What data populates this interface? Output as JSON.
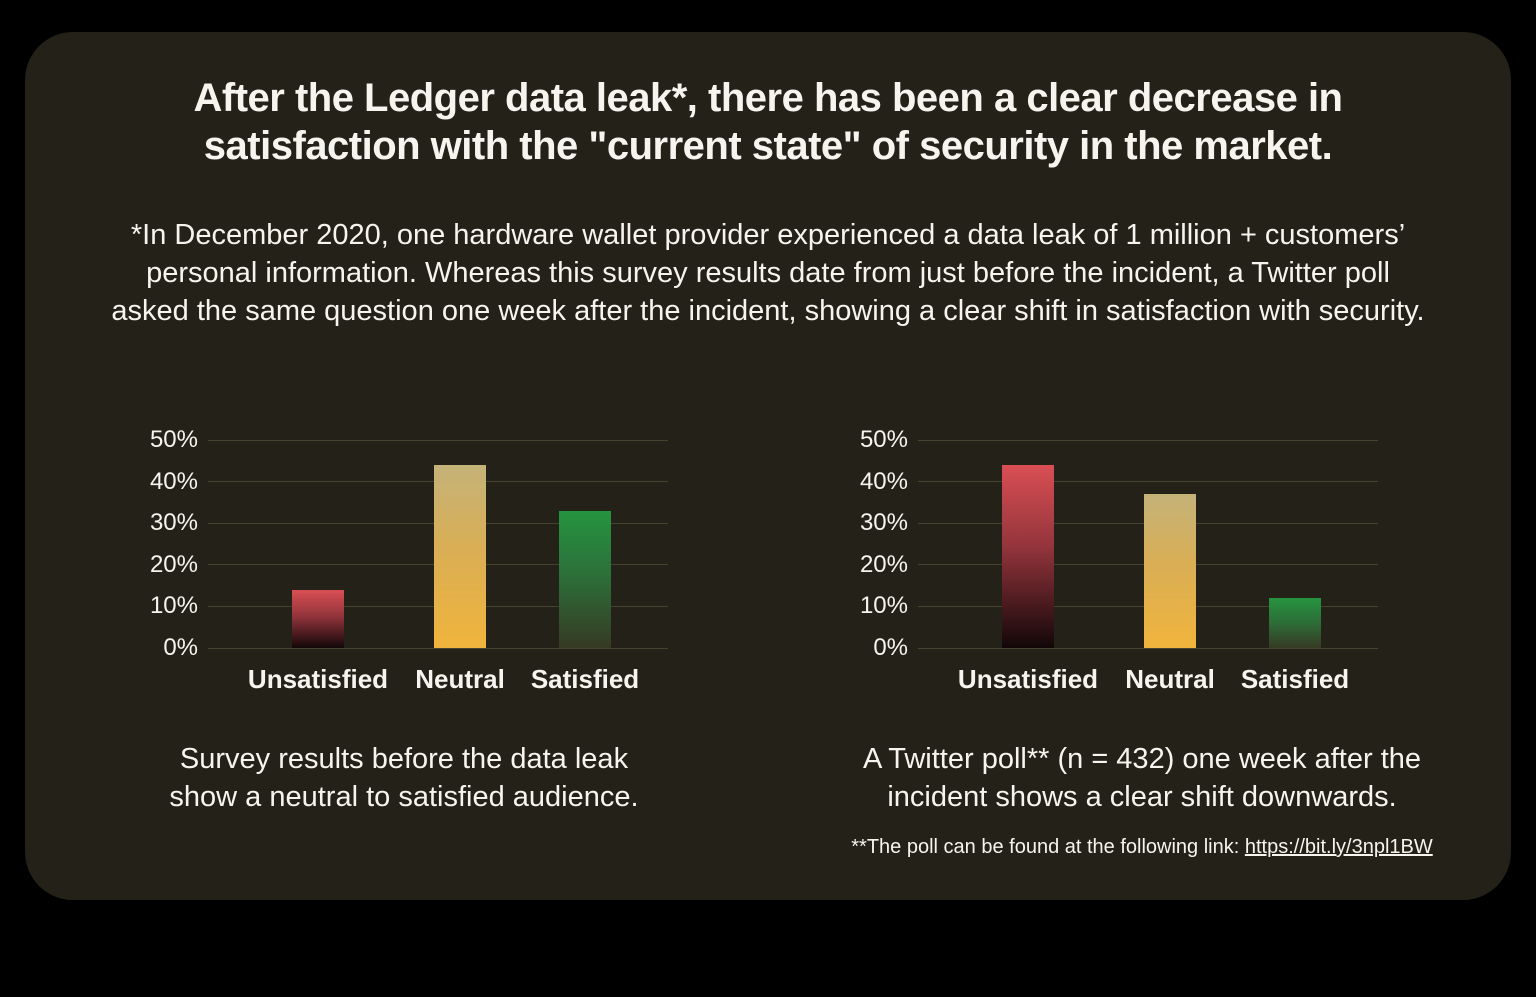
{
  "page": {
    "title_lines": [
      "After the Ledger data leak*, there has been a clear decrease in",
      "satisfaction with the \"current state\" of security in the market."
    ],
    "subtitle_lines": [
      "*In December 2020, one hardware wallet provider experienced a data leak of 1 million + customers’",
      "personal information. Whereas this survey results date from just before the incident, a Twitter poll",
      "asked the same question one week after the incident, showing a clear shift in satisfaction with security."
    ]
  },
  "colors": {
    "page_background": "#000000",
    "card_background": "#232118",
    "text": "#f6f4ee",
    "gridline": "#45422e",
    "gradients": {
      "red": [
        "#d94f54",
        "#93343c",
        "#120708"
      ],
      "yellow": [
        "#c4b379",
        "#d9ae55",
        "#f0b43c"
      ],
      "green": [
        "#25943f",
        "#2c713a",
        "#363a23"
      ]
    }
  },
  "chart_data": [
    {
      "type": "bar",
      "title": "",
      "xlabel": "",
      "ylabel": "",
      "categories": [
        "Unsatisfied",
        "Neutral",
        "Satisfied"
      ],
      "values": [
        14,
        44,
        33
      ],
      "value_unit": "%",
      "ylim": [
        0,
        50
      ],
      "yticks": [
        "0%",
        "10%",
        "20%",
        "30%",
        "40%",
        "50%"
      ],
      "grid": true,
      "legend": false,
      "bar_colors": [
        "red",
        "yellow",
        "green"
      ],
      "caption_lines": [
        "Survey results before the data leak",
        "show a neutral to satisfied audience."
      ]
    },
    {
      "type": "bar",
      "title": "",
      "xlabel": "",
      "ylabel": "",
      "categories": [
        "Unsatisfied",
        "Neutral",
        "Satisfied"
      ],
      "values": [
        44,
        37,
        12
      ],
      "value_unit": "%",
      "ylim": [
        0,
        50
      ],
      "yticks": [
        "0%",
        "10%",
        "20%",
        "30%",
        "40%",
        "50%"
      ],
      "grid": true,
      "legend": false,
      "bar_colors": [
        "red",
        "yellow",
        "green"
      ],
      "caption_lines": [
        "A Twitter poll** (n = 432) one week after the",
        "incident shows a clear shift downwards."
      ]
    }
  ],
  "footnote": {
    "text": "**The poll can be found at the following link: ",
    "link_text": "https://bit.ly/3npl1BW"
  }
}
